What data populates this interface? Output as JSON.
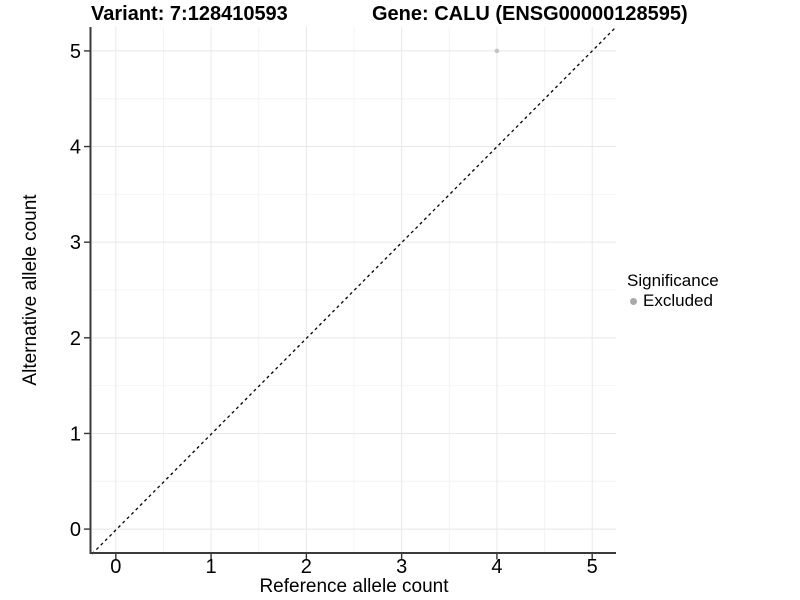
{
  "chart_data": {
    "type": "scatter",
    "titles": {
      "left": "Variant: 7:128410593",
      "right": "Gene: CALU (ENSG00000128595)"
    },
    "xlabel": "Reference allele count",
    "ylabel": "Alternative allele count",
    "xlim": [
      -0.25,
      5.25
    ],
    "ylim": [
      -0.25,
      5.25
    ],
    "x_ticks": [
      0,
      1,
      2,
      3,
      4,
      5
    ],
    "y_ticks": [
      0,
      1,
      2,
      3,
      4,
      5
    ],
    "x_minor": [
      0.5,
      1.5,
      2.5,
      3.5,
      4.5
    ],
    "y_minor": [
      0.5,
      1.5,
      2.5,
      3.5,
      4.5
    ],
    "grid": "major+minor",
    "identity_line": {
      "equation": "y = x",
      "style": "dashed",
      "color": "#000000"
    },
    "series": [
      {
        "name": "Excluded",
        "color": "#c2c2c2",
        "points": [
          [
            4,
            5
          ]
        ],
        "marker_radius": 2.3
      }
    ],
    "legend": {
      "title": "Significance",
      "position": "right",
      "items": [
        {
          "label": "Excluded",
          "color": "#aaaaaa",
          "marker": "circle"
        }
      ]
    },
    "colors": {
      "background": "#ffffff",
      "grid_major": "#e8e8e8",
      "grid_minor": "#f4f4f4",
      "axis_line": "#3a3a3a",
      "tick_mark": "#333333",
      "text": "#000000"
    }
  }
}
